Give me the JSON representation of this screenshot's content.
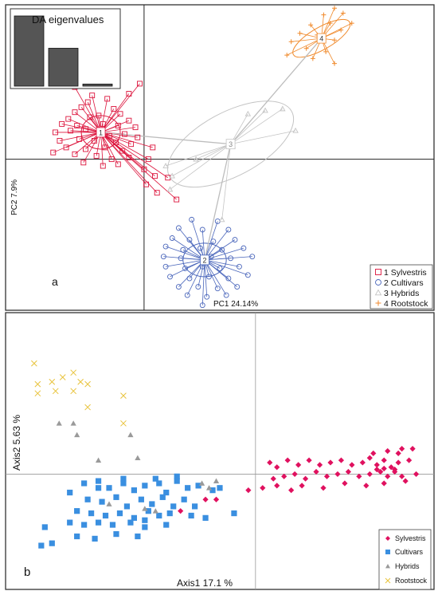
{
  "chart_data": [
    {
      "panel": "a",
      "type": "scatter",
      "xlabel": "PC1 24.14%",
      "ylabel": "PC2 7.9%",
      "xlim": [
        -3.2,
        6.7
      ],
      "ylim": [
        -4.5,
        4.6
      ],
      "grid": false,
      "legend_position": "bottom-right",
      "colors": {
        "s1": "#dc143c",
        "s2": "#4a66bb",
        "s3": "#c4c4c4",
        "s4": "#f08a2c"
      },
      "inset": {
        "title": "DA eigenvalues",
        "type": "bar",
        "values": [
          1.0,
          0.54,
          0.03
        ]
      },
      "series": [
        {
          "name": "1 Sylvestris",
          "label": "1",
          "marker": "square",
          "centroid": [
            -1.0,
            0.8
          ],
          "ellipse": {
            "rx": 0.45,
            "ry": 0.5,
            "angle": 0
          },
          "points": [
            [
              -1.2,
              1.9
            ],
            [
              -0.85,
              1.8
            ],
            [
              -1.3,
              1.7
            ],
            [
              -1.45,
              1.55
            ],
            [
              -0.7,
              1.5
            ],
            [
              -1.6,
              1.4
            ],
            [
              -0.55,
              1.35
            ],
            [
              -1.75,
              1.2
            ],
            [
              -1.25,
              1.25
            ],
            [
              -1.05,
              1.3
            ],
            [
              -0.35,
              1.15
            ],
            [
              -1.9,
              1.05
            ],
            [
              -1.55,
              1.0
            ],
            [
              -0.95,
              1.05
            ],
            [
              -0.6,
              1.0
            ],
            [
              -0.2,
              0.95
            ],
            [
              -2.05,
              0.8
            ],
            [
              -1.7,
              0.85
            ],
            [
              -1.35,
              0.9
            ],
            [
              -0.8,
              0.7
            ],
            [
              -0.45,
              0.75
            ],
            [
              -0.15,
              0.65
            ],
            [
              -1.95,
              0.55
            ],
            [
              -1.5,
              0.6
            ],
            [
              -1.15,
              0.55
            ],
            [
              -0.65,
              0.5
            ],
            [
              -0.3,
              0.45
            ],
            [
              -1.8,
              0.35
            ],
            [
              -1.35,
              0.3
            ],
            [
              -0.9,
              0.35
            ],
            [
              -0.5,
              0.25
            ],
            [
              -2.1,
              0.2
            ],
            [
              -1.6,
              0.15
            ],
            [
              -1.1,
              0.1
            ],
            [
              -0.75,
              0.0
            ],
            [
              -0.35,
              0.05
            ],
            [
              -1.4,
              -0.1
            ],
            [
              -0.95,
              -0.2
            ],
            [
              -0.6,
              -0.15
            ],
            [
              -0.1,
              2.25
            ],
            [
              -0.35,
              1.95
            ],
            [
              -1.6,
              2.15
            ],
            [
              0.2,
              0.35
            ],
            [
              0.1,
              0.0
            ],
            [
              0.0,
              -0.3
            ],
            [
              0.25,
              -0.5
            ],
            [
              0.55,
              -0.55
            ],
            [
              0.3,
              -1.0
            ],
            [
              0.75,
              -1.2
            ],
            [
              0.05,
              -0.75
            ]
          ]
        },
        {
          "name": "2 Cultivars",
          "label": "2",
          "marker": "circle",
          "centroid": [
            1.4,
            -3.0
          ],
          "ellipse": {
            "rx": 0.5,
            "ry": 0.5,
            "angle": 0
          },
          "points": [
            [
              1.1,
              -1.8
            ],
            [
              1.7,
              -1.85
            ],
            [
              0.8,
              -2.05
            ],
            [
              1.35,
              -2.1
            ],
            [
              1.95,
              -2.1
            ],
            [
              0.65,
              -2.35
            ],
            [
              1.05,
              -2.4
            ],
            [
              1.6,
              -2.45
            ],
            [
              2.1,
              -2.4
            ],
            [
              0.5,
              -2.6
            ],
            [
              0.9,
              -2.7
            ],
            [
              1.3,
              -2.65
            ],
            [
              1.8,
              -2.7
            ],
            [
              2.3,
              -2.65
            ],
            [
              0.45,
              -2.9
            ],
            [
              0.85,
              -2.95
            ],
            [
              1.55,
              -2.9
            ],
            [
              2.0,
              -2.95
            ],
            [
              2.5,
              -2.9
            ],
            [
              0.5,
              -3.2
            ],
            [
              0.95,
              -3.25
            ],
            [
              1.35,
              -3.2
            ],
            [
              1.75,
              -3.25
            ],
            [
              2.2,
              -3.2
            ],
            [
              0.6,
              -3.5
            ],
            [
              1.05,
              -3.55
            ],
            [
              1.5,
              -3.5
            ],
            [
              1.95,
              -3.55
            ],
            [
              2.4,
              -3.45
            ],
            [
              0.8,
              -3.8
            ],
            [
              1.25,
              -3.8
            ],
            [
              1.7,
              -3.85
            ],
            [
              2.15,
              -3.8
            ],
            [
              1.0,
              -4.05
            ],
            [
              1.45,
              -4.1
            ],
            [
              1.9,
              -4.05
            ],
            [
              1.35,
              -4.35
            ]
          ]
        },
        {
          "name": "3 Hybrids",
          "label": "3",
          "marker": "triangle",
          "centroid": [
            2.0,
            0.45
          ],
          "ellipse": {
            "rx": 1.6,
            "ry": 0.95,
            "angle": -28
          },
          "points": [
            [
              2.8,
              1.45
            ],
            [
              3.2,
              1.5
            ],
            [
              2.4,
              1.35
            ],
            [
              3.5,
              0.85
            ],
            [
              1.2,
              0.0
            ],
            [
              0.5,
              -0.2
            ],
            [
              0.65,
              -0.5
            ],
            [
              0.6,
              -0.9
            ],
            [
              1.8,
              -1.8
            ],
            [
              2.05,
              0.4
            ]
          ]
        },
        {
          "name": "4 Rootstock",
          "label": "4",
          "marker": "plus",
          "centroid": [
            4.1,
            3.6
          ],
          "ellipse": {
            "rx": 0.75,
            "ry": 0.33,
            "angle": -30
          },
          "points": [
            [
              4.4,
              4.5
            ],
            [
              4.6,
              4.35
            ],
            [
              4.15,
              4.3
            ],
            [
              4.8,
              4.05
            ],
            [
              4.3,
              4.05
            ],
            [
              3.85,
              4.0
            ],
            [
              4.55,
              3.85
            ],
            [
              3.6,
              3.75
            ],
            [
              4.0,
              3.7
            ],
            [
              4.4,
              3.55
            ],
            [
              3.4,
              3.5
            ],
            [
              3.75,
              3.3
            ],
            [
              4.2,
              3.2
            ],
            [
              3.3,
              3.1
            ],
            [
              3.9,
              3.0
            ],
            [
              4.4,
              2.85
            ]
          ]
        }
      ]
    },
    {
      "panel": "b",
      "type": "scatter",
      "xlabel": "Axis1  17.1 %",
      "ylabel": "Axis2  5.63 %",
      "xlim": [
        -3.5,
        2.5
      ],
      "ylim": [
        -2.5,
        3.5
      ],
      "grid": false,
      "legend_position": "bottom-right",
      "colors": {
        "Sylvestris": "#e0115f",
        "Cultivars": "#3a8fe0",
        "Hybrids": "#9a9a9a",
        "Rootstock": "#e8c33c"
      },
      "series": [
        {
          "name": "Sylvestris",
          "marker": "diamond",
          "points": [
            [
              0.2,
              0.25
            ],
            [
              0.3,
              0.15
            ],
            [
              0.45,
              0.3
            ],
            [
              0.6,
              0.2
            ],
            [
              0.75,
              0.3
            ],
            [
              0.9,
              0.2
            ],
            [
              1.05,
              0.25
            ],
            [
              1.2,
              0.3
            ],
            [
              1.35,
              0.2
            ],
            [
              1.5,
              0.25
            ],
            [
              1.6,
              0.35
            ],
            [
              1.7,
              0.2
            ],
            [
              1.8,
              0.3
            ],
            [
              1.9,
              0.15
            ],
            [
              2.0,
              0.25
            ],
            [
              2.15,
              0.3
            ],
            [
              0.25,
              -0.1
            ],
            [
              0.4,
              -0.05
            ],
            [
              0.55,
              0.0
            ],
            [
              0.7,
              -0.1
            ],
            [
              0.85,
              0.05
            ],
            [
              1.0,
              -0.05
            ],
            [
              1.15,
              0.0
            ],
            [
              1.3,
              0.05
            ],
            [
              1.45,
              -0.05
            ],
            [
              1.6,
              0.0
            ],
            [
              1.75,
              0.05
            ],
            [
              1.85,
              -0.05
            ],
            [
              1.95,
              0.05
            ],
            [
              2.05,
              -0.05
            ],
            [
              0.1,
              -0.3
            ],
            [
              0.3,
              -0.25
            ],
            [
              0.5,
              -0.35
            ],
            [
              0.65,
              -0.25
            ],
            [
              0.95,
              -0.3
            ],
            [
              1.25,
              -0.2
            ],
            [
              1.55,
              -0.25
            ],
            [
              1.8,
              -0.2
            ],
            [
              2.1,
              -0.15
            ],
            [
              2.25,
              0.0
            ],
            [
              1.65,
              0.45
            ],
            [
              1.85,
              0.5
            ],
            [
              2.0,
              0.45
            ],
            [
              2.05,
              0.55
            ],
            [
              2.2,
              0.55
            ],
            [
              1.95,
              0.1
            ],
            [
              1.8,
              0.12
            ],
            [
              1.7,
              0.1
            ],
            [
              -0.1,
              -0.35
            ],
            [
              -1.05,
              -0.8
            ],
            [
              -0.7,
              -0.55
            ],
            [
              -0.55,
              -0.55
            ]
          ]
        },
        {
          "name": "Cultivars",
          "marker": "square",
          "points": [
            [
              -2.4,
              -0.2
            ],
            [
              -2.2,
              -0.3
            ],
            [
              -2.05,
              -0.3
            ],
            [
              -1.85,
              -0.1
            ],
            [
              -1.7,
              -0.35
            ],
            [
              -1.55,
              -0.25
            ],
            [
              -1.4,
              -0.1
            ],
            [
              -1.25,
              -0.4
            ],
            [
              -1.1,
              -0.15
            ],
            [
              -0.95,
              -0.3
            ],
            [
              -0.8,
              -0.25
            ],
            [
              -0.6,
              -0.35
            ],
            [
              -2.35,
              -0.55
            ],
            [
              -2.15,
              -0.6
            ],
            [
              -1.95,
              -0.5
            ],
            [
              -1.8,
              -0.7
            ],
            [
              -1.6,
              -0.55
            ],
            [
              -1.45,
              -0.65
            ],
            [
              -1.3,
              -0.5
            ],
            [
              -1.15,
              -0.7
            ],
            [
              -1.0,
              -0.55
            ],
            [
              -0.85,
              -0.7
            ],
            [
              -2.5,
              -0.8
            ],
            [
              -2.3,
              -0.85
            ],
            [
              -2.1,
              -0.9
            ],
            [
              -1.9,
              -0.85
            ],
            [
              -1.7,
              -0.95
            ],
            [
              -1.5,
              -0.8
            ],
            [
              -1.35,
              -0.9
            ],
            [
              -1.2,
              -0.85
            ],
            [
              -0.9,
              -0.9
            ],
            [
              -0.7,
              -0.95
            ],
            [
              -2.6,
              -1.05
            ],
            [
              -2.4,
              -1.1
            ],
            [
              -2.2,
              -1.05
            ],
            [
              -2.0,
              -1.1
            ],
            [
              -1.75,
              -1.05
            ],
            [
              -1.55,
              -1.15
            ],
            [
              -1.25,
              -1.1
            ],
            [
              -2.5,
              -1.35
            ],
            [
              -2.25,
              -1.4
            ],
            [
              -1.95,
              -1.3
            ],
            [
              -1.65,
              -1.35
            ],
            [
              -3.0,
              -1.55
            ],
            [
              -2.85,
              -1.5
            ],
            [
              -2.95,
              -1.15
            ],
            [
              -1.1,
              -0.05
            ],
            [
              -0.3,
              -0.85
            ],
            [
              -0.5,
              -0.3
            ],
            [
              -1.35,
              -0.2
            ],
            [
              -2.2,
              -0.15
            ],
            [
              -1.55,
              -1.0
            ],
            [
              -1.85,
              -0.2
            ],
            [
              -2.6,
              -0.4
            ]
          ]
        },
        {
          "name": "Hybrids",
          "marker": "triangle",
          "points": [
            [
              -2.75,
              1.1
            ],
            [
              -2.55,
              1.1
            ],
            [
              -2.5,
              0.85
            ],
            [
              -2.2,
              0.3
            ],
            [
              -1.65,
              0.35
            ],
            [
              -1.75,
              0.85
            ],
            [
              -0.75,
              -0.2
            ],
            [
              -0.55,
              -0.15
            ],
            [
              -0.65,
              -0.3
            ],
            [
              -2.05,
              -0.65
            ],
            [
              -1.55,
              -0.75
            ],
            [
              -1.4,
              -0.8
            ]
          ]
        },
        {
          "name": "Rootstock",
          "marker": "x",
          "points": [
            [
              -3.1,
              2.4
            ],
            [
              -3.05,
              1.95
            ],
            [
              -2.85,
              2.0
            ],
            [
              -2.7,
              2.1
            ],
            [
              -2.55,
              2.2
            ],
            [
              -2.45,
              2.0
            ],
            [
              -2.35,
              1.95
            ],
            [
              -2.55,
              1.8
            ],
            [
              -2.8,
              1.8
            ],
            [
              -3.05,
              1.75
            ],
            [
              -2.35,
              1.45
            ],
            [
              -1.85,
              1.7
            ],
            [
              -1.85,
              1.1
            ]
          ]
        }
      ]
    }
  ]
}
